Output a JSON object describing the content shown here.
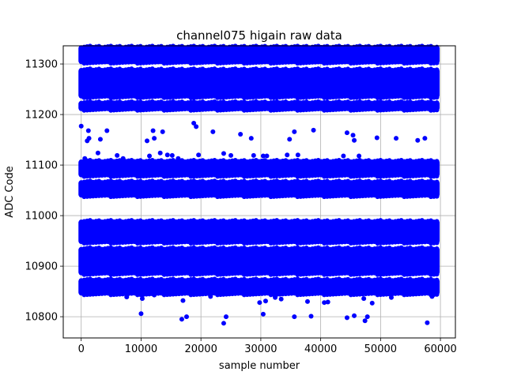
{
  "chart_data": {
    "type": "scatter",
    "title": "channel075 higain raw data",
    "xlabel": "sample number",
    "ylabel": "ADC Code",
    "xlim": [
      -3000,
      62500
    ],
    "ylim": [
      10758,
      11336
    ],
    "xticks": [
      0,
      10000,
      20000,
      30000,
      40000,
      50000,
      60000
    ],
    "xtick_labels": [
      "0",
      "10000",
      "20000",
      "30000",
      "40000",
      "50000",
      "60000"
    ],
    "yticks": [
      10800,
      10900,
      11000,
      11100,
      11200,
      11300
    ],
    "ytick_labels": [
      "10800",
      "10900",
      "11000",
      "11100",
      "11200",
      "11300"
    ],
    "grid": true,
    "marker_color": "#0000ff",
    "x_range_of_samples": [
      0,
      59400
    ],
    "bands": [
      {
        "y_min": 11306,
        "y_max": 11331
      },
      {
        "y_min": 11238,
        "y_max": 11286
      },
      {
        "y_min": 11213,
        "y_max": 11221
      },
      {
        "y_min": 11082,
        "y_max": 11105
      },
      {
        "y_min": 11042,
        "y_max": 11064
      },
      {
        "y_min": 10950,
        "y_max": 10986
      },
      {
        "y_min": 10888,
        "y_max": 10932
      },
      {
        "y_min": 10848,
        "y_max": 10870
      }
    ],
    "outliers": [
      {
        "x": 0,
        "y": 11177
      },
      {
        "x": 600,
        "y": 11113
      },
      {
        "x": 1000,
        "y": 11148
      },
      {
        "x": 1200,
        "y": 11168
      },
      {
        "x": 1300,
        "y": 11153
      },
      {
        "x": 2800,
        "y": 11124
      },
      {
        "x": 3200,
        "y": 11151
      },
      {
        "x": 4300,
        "y": 11168
      },
      {
        "x": 6000,
        "y": 11119
      },
      {
        "x": 7000,
        "y": 11113
      },
      {
        "x": 11000,
        "y": 11148
      },
      {
        "x": 11400,
        "y": 11118
      },
      {
        "x": 12000,
        "y": 11168
      },
      {
        "x": 12200,
        "y": 11153
      },
      {
        "x": 13200,
        "y": 11124
      },
      {
        "x": 13600,
        "y": 11166
      },
      {
        "x": 14400,
        "y": 11120
      },
      {
        "x": 15200,
        "y": 11119
      },
      {
        "x": 16200,
        "y": 11113
      },
      {
        "x": 18800,
        "y": 11183
      },
      {
        "x": 19200,
        "y": 11176
      },
      {
        "x": 19600,
        "y": 11120
      },
      {
        "x": 22000,
        "y": 11166
      },
      {
        "x": 23800,
        "y": 11123
      },
      {
        "x": 25000,
        "y": 11119
      },
      {
        "x": 26600,
        "y": 11161
      },
      {
        "x": 28400,
        "y": 11153
      },
      {
        "x": 28800,
        "y": 11119
      },
      {
        "x": 30400,
        "y": 11118
      },
      {
        "x": 31000,
        "y": 11118
      },
      {
        "x": 34400,
        "y": 11120
      },
      {
        "x": 34800,
        "y": 11151
      },
      {
        "x": 35600,
        "y": 11166
      },
      {
        "x": 36200,
        "y": 11120
      },
      {
        "x": 38800,
        "y": 11169
      },
      {
        "x": 43800,
        "y": 11118
      },
      {
        "x": 44400,
        "y": 11164
      },
      {
        "x": 45400,
        "y": 11159
      },
      {
        "x": 45600,
        "y": 11149
      },
      {
        "x": 46400,
        "y": 11118
      },
      {
        "x": 49400,
        "y": 11154
      },
      {
        "x": 52600,
        "y": 11153
      },
      {
        "x": 56200,
        "y": 11149
      },
      {
        "x": 57400,
        "y": 11153
      },
      {
        "x": 7600,
        "y": 10839
      },
      {
        "x": 10000,
        "y": 10806
      },
      {
        "x": 10200,
        "y": 10836
      },
      {
        "x": 12200,
        "y": 10843
      },
      {
        "x": 16800,
        "y": 10795
      },
      {
        "x": 17000,
        "y": 10832
      },
      {
        "x": 17600,
        "y": 10800
      },
      {
        "x": 21600,
        "y": 10840
      },
      {
        "x": 23800,
        "y": 10787
      },
      {
        "x": 24200,
        "y": 10800
      },
      {
        "x": 29800,
        "y": 10828
      },
      {
        "x": 30400,
        "y": 10805
      },
      {
        "x": 30800,
        "y": 10831
      },
      {
        "x": 32400,
        "y": 10838
      },
      {
        "x": 33400,
        "y": 10835
      },
      {
        "x": 35600,
        "y": 10800
      },
      {
        "x": 37800,
        "y": 10830
      },
      {
        "x": 38400,
        "y": 10801
      },
      {
        "x": 40600,
        "y": 10828
      },
      {
        "x": 41200,
        "y": 10829
      },
      {
        "x": 44400,
        "y": 10798
      },
      {
        "x": 45600,
        "y": 10802
      },
      {
        "x": 47200,
        "y": 10836
      },
      {
        "x": 47400,
        "y": 10792
      },
      {
        "x": 47800,
        "y": 10800
      },
      {
        "x": 48600,
        "y": 10827
      },
      {
        "x": 51800,
        "y": 10838
      },
      {
        "x": 57800,
        "y": 10788
      },
      {
        "x": 58600,
        "y": 10840
      }
    ]
  }
}
